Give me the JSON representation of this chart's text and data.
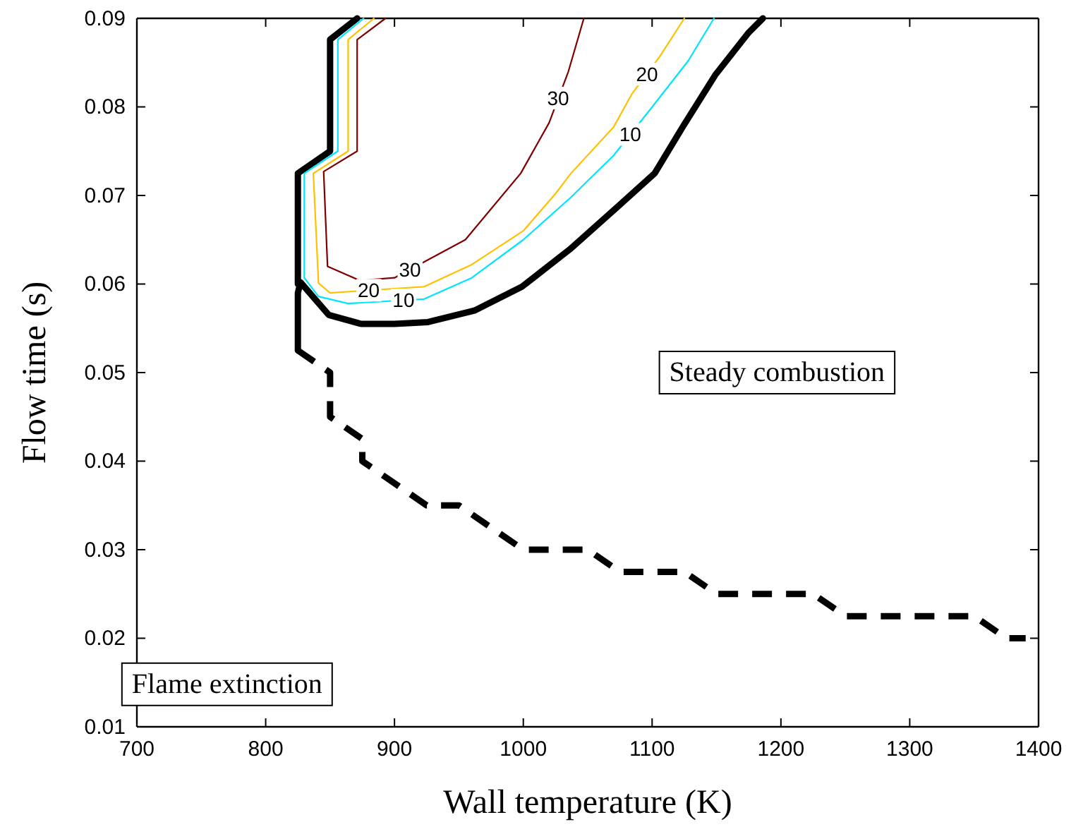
{
  "chart_data": {
    "type": "line",
    "xlabel": "Wall temperature (K)",
    "ylabel": "Flow time (s)",
    "xlim": [
      700,
      1400
    ],
    "xticks": [
      700,
      800,
      900,
      1000,
      1100,
      1200,
      1300,
      1400
    ],
    "ylim": [
      0.01,
      0.09
    ],
    "yticks": [
      0.01,
      0.02,
      0.03,
      0.04,
      0.05,
      0.06,
      0.07,
      0.08,
      0.09
    ],
    "grid": false,
    "marker": "none",
    "series": [
      {
        "color": "#000000",
        "line_style": "solid",
        "x": [
          1186,
          1175,
          1149,
          1124,
          1102,
          1073,
          1036,
          999,
          962,
          926,
          900,
          874,
          849,
          827,
          825,
          825
        ],
        "values": [
          0.09,
          0.0884,
          0.0836,
          0.0778,
          0.0725,
          0.0687,
          0.0639,
          0.0597,
          0.057,
          0.0557,
          0.0555,
          0.0555,
          0.0565,
          0.0602,
          0.059,
          0.0525
        ]
      },
      {
        "color": "#000000",
        "line_style": "solid",
        "x": [
          825,
          825,
          850,
          850,
          871
        ],
        "values": [
          0.06,
          0.0725,
          0.075,
          0.0876,
          0.09
        ]
      },
      {
        "color": "#000000",
        "line_style": "dashed",
        "x": [
          825,
          850,
          850,
          875,
          875,
          925,
          950,
          1000,
          1050,
          1075,
          1125,
          1150,
          1225,
          1250,
          1350,
          1375,
          1390
        ],
        "values": [
          0.0525,
          0.05,
          0.045,
          0.0425,
          0.04,
          0.035,
          0.035,
          0.03,
          0.03,
          0.0275,
          0.0275,
          0.025,
          0.025,
          0.0225,
          0.0225,
          0.02,
          0.02
        ]
      },
      {
        "color": "#00e5ff",
        "line_style": "solid",
        "x": [
          876,
          856,
          856,
          830,
          830,
          841,
          864,
          923,
          960,
          1000,
          1037,
          1070,
          1099,
          1128,
          1148
        ],
        "values": [
          0.09,
          0.0876,
          0.075,
          0.0725,
          0.0607,
          0.0586,
          0.0578,
          0.0583,
          0.0607,
          0.065,
          0.0698,
          0.0745,
          0.0798,
          0.0852,
          0.09
        ]
      },
      {
        "color": "#ffc000",
        "line_style": "solid",
        "x": [
          884,
          864,
          864,
          837,
          841,
          850,
          923,
          960,
          1000,
          1025,
          1037,
          1070,
          1084,
          1106,
          1125
        ],
        "values": [
          0.09,
          0.0876,
          0.075,
          0.0725,
          0.0601,
          0.059,
          0.0597,
          0.0622,
          0.066,
          0.0702,
          0.0725,
          0.0777,
          0.0814,
          0.0857,
          0.09
        ]
      },
      {
        "color": "#800000",
        "line_style": "solid",
        "x": [
          893,
          871,
          871,
          845,
          848,
          873,
          900,
          955,
          998,
          1020,
          1035,
          1047
        ],
        "values": [
          0.09,
          0.0876,
          0.075,
          0.0727,
          0.062,
          0.0604,
          0.0607,
          0.065,
          0.0725,
          0.0782,
          0.084,
          0.09
        ]
      }
    ],
    "annotations": [
      {
        "text": "30",
        "x": 1027,
        "y": 0.081
      },
      {
        "text": "20",
        "x": 1096,
        "y": 0.0837
      },
      {
        "text": "10",
        "x": 1083,
        "y": 0.0769
      },
      {
        "text": "30",
        "x": 912,
        "y": 0.0616
      },
      {
        "text": "20",
        "x": 880,
        "y": 0.0593
      },
      {
        "text": "10",
        "x": 907,
        "y": 0.0582
      },
      "Steady combustion",
      "Flame extinction"
    ]
  }
}
